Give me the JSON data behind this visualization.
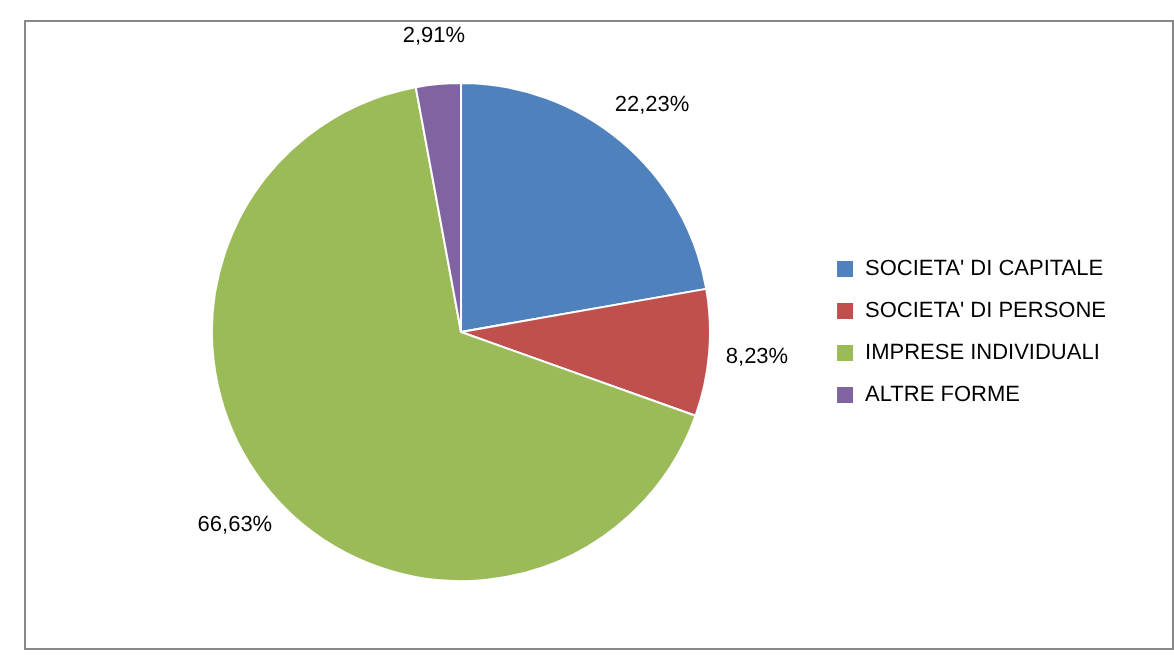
{
  "chart_data": {
    "type": "pie",
    "categories": [
      "SOCIETA' DI CAPITALE",
      "SOCIETA' DI PERSONE",
      "IMPRESE INDIVIDUALI",
      "ALTRE FORME"
    ],
    "values": [
      22.23,
      8.23,
      66.63,
      2.91
    ],
    "value_labels": [
      "22,23%",
      "8,23%",
      "66,63%",
      "2,91%"
    ],
    "colors": [
      "#4f81bd",
      "#c0504d",
      "#9bbb59",
      "#8064a2"
    ],
    "legend": "right"
  }
}
